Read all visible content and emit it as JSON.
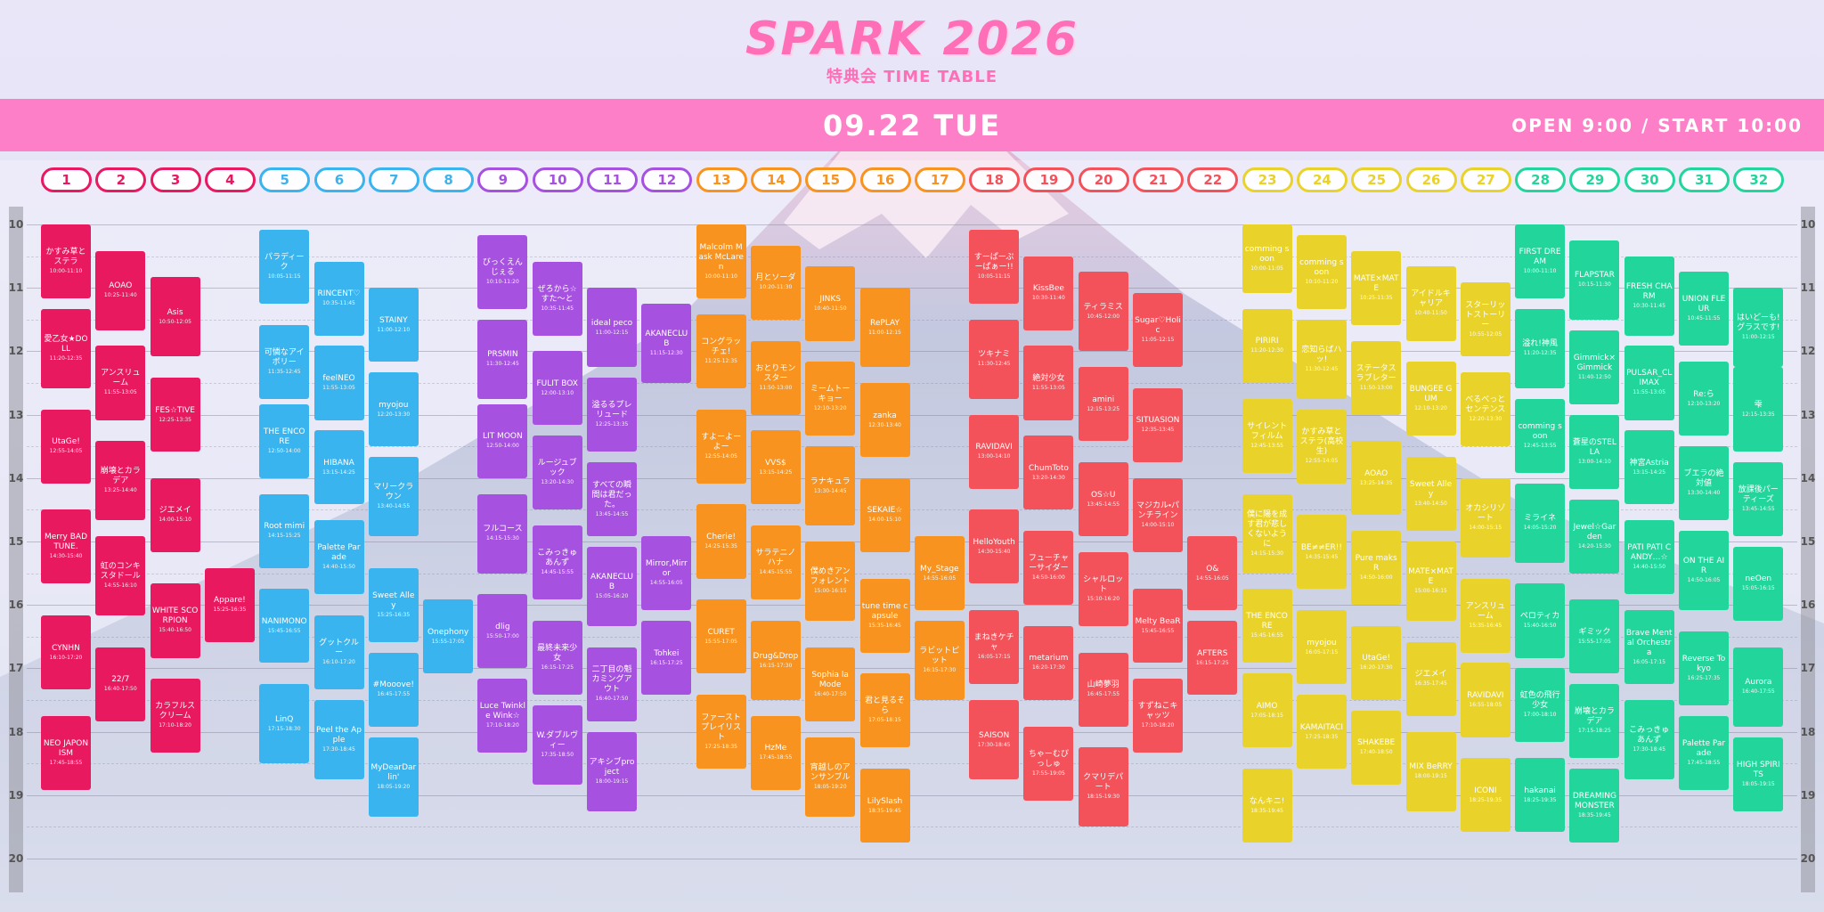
{
  "header": {
    "title": "SPARK 2026",
    "subtitle": "特典会 TIME TABLE",
    "date": "09.22 TUE",
    "open": "OPEN 9:00 / START 10:00"
  },
  "hours": [
    "10",
    "11",
    "12",
    "13",
    "14",
    "15",
    "16",
    "17",
    "18",
    "19",
    "20"
  ],
  "stages": [
    {
      "label": "1",
      "color": "#e8195f",
      "events": [
        {
          "name": "かすみ草とステラ",
          "time": "10:00-11:10"
        },
        {
          "name": "愛乙女★DOLL",
          "time": "11:20-12:35"
        },
        {
          "name": "UtaGe!",
          "time": "12:55-14:05"
        },
        {
          "name": "Merry BAD TUNE.",
          "time": "14:30-15:40"
        },
        {
          "name": "CYNHN",
          "time": "16:10-17:20"
        },
        {
          "name": "NEO JAPONISM",
          "time": "17:45-18:55"
        }
      ]
    },
    {
      "label": "2",
      "color": "#e8195f",
      "events": [
        {
          "name": "AOAO",
          "time": "10:25-11:40"
        },
        {
          "name": "アンスリューム",
          "time": "11:55-13:05"
        },
        {
          "name": "崩壊とカラデア",
          "time": "13:25-14:40"
        },
        {
          "name": "虹のコンキスタドール",
          "time": "14:55-16:10"
        },
        {
          "name": "22/7",
          "time": "16:40-17:50"
        }
      ]
    },
    {
      "label": "3",
      "color": "#e8195f",
      "events": [
        {
          "name": "Asis",
          "time": "10:50-12:05"
        },
        {
          "name": "FES☆TIVE",
          "time": "12:25-13:35"
        },
        {
          "name": "ジエメイ",
          "time": "14:00-15:10"
        },
        {
          "name": "WHITE SCORPION",
          "time": "15:40-16:50"
        },
        {
          "name": "カラフルスクリーム",
          "time": "17:10-18:20"
        }
      ]
    },
    {
      "label": "4",
      "color": "#e8195f",
      "events": [
        {
          "name": "Appare!",
          "time": "15:25-16:35"
        }
      ]
    },
    {
      "label": "5",
      "color": "#3ab4ee",
      "events": [
        {
          "name": "パラディーク",
          "time": "10:05-11:15"
        },
        {
          "name": "可憐なアイボリー",
          "time": "11:35-12:45"
        },
        {
          "name": "THE ENCORE",
          "time": "12:50-14:00"
        },
        {
          "name": "Root mimi",
          "time": "14:15-15:25"
        },
        {
          "name": "NANIMONO",
          "time": "15:45-16:55"
        },
        {
          "name": "LinQ",
          "time": "17:15-18:30"
        }
      ]
    },
    {
      "label": "6",
      "color": "#3ab4ee",
      "events": [
        {
          "name": "RINCENT♡",
          "time": "10:35-11:45"
        },
        {
          "name": "feelNEO",
          "time": "11:55-13:05"
        },
        {
          "name": "HIBANA",
          "time": "13:15-14:25"
        },
        {
          "name": "Palette Parade",
          "time": "14:40-15:50"
        },
        {
          "name": "グットクルー",
          "time": "16:10-17:20"
        },
        {
          "name": "Peel the Apple",
          "time": "17:30-18:45"
        }
      ]
    },
    {
      "label": "7",
      "color": "#3ab4ee",
      "events": [
        {
          "name": "STAINY",
          "time": "11:00-12:10"
        },
        {
          "name": "myojou",
          "time": "12:20-13:30"
        },
        {
          "name": "マリークラウン",
          "time": "13:40-14:55"
        },
        {
          "name": "Sweet Alley",
          "time": "15:25-16:35"
        },
        {
          "name": "#Mooove!",
          "time": "16:45-17:55"
        },
        {
          "name": "MyDearDarlin'",
          "time": "18:05-19:20"
        }
      ]
    },
    {
      "label": "8",
      "color": "#3ab4ee",
      "events": [
        {
          "name": "Onephony",
          "time": "15:55-17:05"
        }
      ]
    },
    {
      "label": "9",
      "color": "#a651e0",
      "events": [
        {
          "name": "びっくえんじぇる",
          "time": "10:10-11:20"
        },
        {
          "name": "PRSMIN",
          "time": "11:30-12:45"
        },
        {
          "name": "LIT MOON",
          "time": "12:50-14:00"
        },
        {
          "name": "フルコース",
          "time": "14:15-15:30"
        },
        {
          "name": "dlig",
          "time": "15:50-17:00"
        },
        {
          "name": "Luce Twinkle Wink☆",
          "time": "17:10-18:20"
        }
      ]
    },
    {
      "label": "10",
      "color": "#a651e0",
      "events": [
        {
          "name": "ぜろから☆すた～と",
          "time": "10:35-11:45"
        },
        {
          "name": "FULIT BOX",
          "time": "12:00-13:10"
        },
        {
          "name": "ルージュブック",
          "time": "13:20-14:30"
        },
        {
          "name": "こみっきゅあんず",
          "time": "14:45-15:55"
        },
        {
          "name": "最終未来少女",
          "time": "16:15-17:25"
        },
        {
          "name": "W.ダブルヴィー",
          "time": "17:35-18:50"
        }
      ]
    },
    {
      "label": "11",
      "color": "#a651e0",
      "events": [
        {
          "name": "ideal peco",
          "time": "11:00-12:15"
        },
        {
          "name": "溢るるプレリュード",
          "time": "12:25-13:35"
        },
        {
          "name": "すべての瞬間は君だった。",
          "time": "13:45-14:55"
        },
        {
          "name": "AKANECLUB",
          "time": "15:05-16:20"
        },
        {
          "name": "二丁目の魁カミングアウト",
          "time": "16:40-17:50"
        },
        {
          "name": "アキシブproject",
          "time": "18:00-19:15"
        }
      ]
    },
    {
      "label": "12",
      "color": "#a651e0",
      "events": [
        {
          "name": "AKANECLUB",
          "time": "11:15-12:30"
        },
        {
          "name": "Mirror,Mirror",
          "time": "14:55-16:05"
        },
        {
          "name": "Tohkei",
          "time": "16:15-17:25"
        }
      ]
    },
    {
      "label": "13",
      "color": "#f7931e",
      "events": [
        {
          "name": "Malcolm Mask McLaren",
          "time": "10:00-11:10"
        },
        {
          "name": "コングラッチェ!",
          "time": "11:25-12:35"
        },
        {
          "name": "すよーよーよー",
          "time": "12:55-14:05"
        },
        {
          "name": "Cherie!",
          "time": "14:25-15:35"
        },
        {
          "name": "CURET",
          "time": "15:55-17:05"
        },
        {
          "name": "ファーストプレイリスト",
          "time": "17:25-18:35"
        }
      ]
    },
    {
      "label": "14",
      "color": "#f7931e",
      "events": [
        {
          "name": "月とソーダ",
          "time": "10:20-11:30"
        },
        {
          "name": "おとりモンスター",
          "time": "11:50-13:00"
        },
        {
          "name": "VVS$",
          "time": "13:15-14:25"
        },
        {
          "name": "サラテニノハナ",
          "time": "14:45-15:55"
        },
        {
          "name": "Drug&Drop",
          "time": "16:15-17:30"
        },
        {
          "name": "HzMe",
          "time": "17:45-18:55"
        }
      ]
    },
    {
      "label": "15",
      "color": "#f7931e",
      "events": [
        {
          "name": "JINKS",
          "time": "10:40-11:50"
        },
        {
          "name": "ミームトーキョー",
          "time": "12:10-13:20"
        },
        {
          "name": "ラナキュラ",
          "time": "13:30-14:45"
        },
        {
          "name": "僕めきアンフォレント",
          "time": "15:00-16:15"
        },
        {
          "name": "Sophia la Mode",
          "time": "16:40-17:50"
        },
        {
          "name": "宵越しのアンサンブル",
          "time": "18:05-19:20"
        }
      ]
    },
    {
      "label": "16",
      "color": "#f7931e",
      "events": [
        {
          "name": "RePLAY",
          "time": "11:00-12:15"
        },
        {
          "name": "zanka",
          "time": "12:30-13:40"
        },
        {
          "name": "SEKAIE☆",
          "time": "14:00-15:10"
        },
        {
          "name": "tune time capsule",
          "time": "15:35-16:45"
        },
        {
          "name": "君と見るそら",
          "time": "17:05-18:15"
        },
        {
          "name": "LilySlash",
          "time": "18:35-19:45"
        }
      ]
    },
    {
      "label": "17",
      "color": "#f7931e",
      "events": [
        {
          "name": "My_Stage",
          "time": "14:55-16:05"
        },
        {
          "name": "ラビットピット",
          "time": "16:15-17:30"
        }
      ]
    },
    {
      "label": "18",
      "color": "#f4525a",
      "events": [
        {
          "name": "すーぱーぷーぱぁー!!",
          "time": "10:05-11:15"
        },
        {
          "name": "ツキナミ",
          "time": "11:30-12:45"
        },
        {
          "name": "RAVIDAVI",
          "time": "13:00-14:10"
        },
        {
          "name": "HelloYouth",
          "time": "14:30-15:40"
        },
        {
          "name": "まねきケチャ",
          "time": "16:05-17:15"
        },
        {
          "name": "SAISON",
          "time": "17:30-18:45"
        }
      ]
    },
    {
      "label": "19",
      "color": "#f4525a",
      "events": [
        {
          "name": "KissBee",
          "time": "10:30-11:40"
        },
        {
          "name": "絶対少女",
          "time": "11:55-13:05"
        },
        {
          "name": "ChumToto",
          "time": "13:20-14:30"
        },
        {
          "name": "フューチャーサイダー",
          "time": "14:50-16:00"
        },
        {
          "name": "metarium",
          "time": "16:20-17:30"
        },
        {
          "name": "ちゃーむぴっしゅ",
          "time": "17:55-19:05"
        }
      ]
    },
    {
      "label": "20",
      "color": "#f4525a",
      "events": [
        {
          "name": "ティラミス",
          "time": "10:45-12:00"
        },
        {
          "name": "amini",
          "time": "12:15-13:25"
        },
        {
          "name": "OS☆U",
          "time": "13:45-14:55"
        },
        {
          "name": "シャルロット",
          "time": "15:10-16:20"
        },
        {
          "name": "山崎夢羽",
          "time": "16:45-17:55"
        },
        {
          "name": "クマリデパート",
          "time": "18:15-19:30"
        }
      ]
    },
    {
      "label": "21",
      "color": "#f4525a",
      "events": [
        {
          "name": "Sugar♡Holic",
          "time": "11:05-12:15"
        },
        {
          "name": "SITUASION",
          "time": "12:35-13:45"
        },
        {
          "name": "マジカル・パンチライン",
          "time": "14:00-15:10"
        },
        {
          "name": "Melty BeaR",
          "time": "15:45-16:55"
        },
        {
          "name": "すずねこキャッツ",
          "time": "17:10-18:20"
        }
      ]
    },
    {
      "label": "22",
      "color": "#f4525a",
      "events": [
        {
          "name": "O&",
          "time": "14:55-16:05"
        },
        {
          "name": "AFTERS",
          "time": "16:15-17:25"
        }
      ]
    },
    {
      "label": "23",
      "color": "#e9d32a",
      "events": [
        {
          "name": "comming soon",
          "time": "10:00-11:05"
        },
        {
          "name": "PIRIRI",
          "time": "11:20-12:30"
        },
        {
          "name": "サイレントフィルム",
          "time": "12:45-13:55"
        },
        {
          "name": "僕に陽を成す君が悲しくないように",
          "time": "14:15-15:30"
        },
        {
          "name": "THE ENCORE",
          "time": "15:45-16:55"
        },
        {
          "name": "AIMO",
          "time": "17:05-18:15"
        },
        {
          "name": "なんキニ!",
          "time": "18:35-19:45"
        }
      ]
    },
    {
      "label": "24",
      "color": "#e9d32a",
      "events": [
        {
          "name": "comming soon",
          "time": "10:10-11:20"
        },
        {
          "name": "恋知らばハッ!",
          "time": "11:30-12:45"
        },
        {
          "name": "かすみ草とステラ(高校生)",
          "time": "12:55-14:05"
        },
        {
          "name": "BE≠≠ER!!",
          "time": "14:35-15:45"
        },
        {
          "name": "myojou",
          "time": "16:05-17:15"
        },
        {
          "name": "KAMAITACI",
          "time": "17:25-18:35"
        }
      ]
    },
    {
      "label": "25",
      "color": "#e9d32a",
      "events": [
        {
          "name": "MATE×MATE",
          "time": "10:25-11:35"
        },
        {
          "name": "ステータスラブレター",
          "time": "11:50-13:00"
        },
        {
          "name": "AOAO",
          "time": "13:25-14:35"
        },
        {
          "name": "Pure maksR",
          "time": "14:50-16:00"
        },
        {
          "name": "UtaGe!",
          "time": "16:20-17:30"
        },
        {
          "name": "SHAKEBE",
          "time": "17:40-18:50"
        }
      ]
    },
    {
      "label": "26",
      "color": "#e9d32a",
      "events": [
        {
          "name": "アイドルキャリア",
          "time": "10:40-11:50"
        },
        {
          "name": "BUNGEE GUM",
          "time": "12:10-13:20"
        },
        {
          "name": "Sweet Alley",
          "time": "13:40-14:50"
        },
        {
          "name": "MATE×MATE",
          "time": "15:00-16:15"
        },
        {
          "name": "ジエメイ",
          "time": "16:35-17:45"
        },
        {
          "name": "MIX BeRRY",
          "time": "18:00-19:15"
        }
      ]
    },
    {
      "label": "27",
      "color": "#e9d32a",
      "events": [
        {
          "name": "スターリットストーリー",
          "time": "10:55-12:05"
        },
        {
          "name": "べるべっとセンテンス",
          "time": "12:20-13:30"
        },
        {
          "name": "オカシリゾート",
          "time": "14:00-15:15"
        },
        {
          "name": "アンスリューム",
          "time": "15:35-16:45"
        },
        {
          "name": "RAVIDAVI",
          "time": "16:55-18:05"
        },
        {
          "name": "ICONI",
          "time": "18:25-19:35"
        }
      ]
    },
    {
      "label": "28",
      "color": "#22d69b",
      "events": [
        {
          "name": "FIRST DREAM",
          "time": "10:00-11:10"
        },
        {
          "name": "溢れ!神風",
          "time": "11:20-12:35"
        },
        {
          "name": "comming soon",
          "time": "12:45-13:55"
        },
        {
          "name": "ミライネ",
          "time": "14:05-15:20"
        },
        {
          "name": "ペロティカ",
          "time": "15:40-16:50"
        },
        {
          "name": "虹色の飛行少女",
          "time": "17:00-18:10"
        },
        {
          "name": "hakanai",
          "time": "18:25-19:35"
        }
      ]
    },
    {
      "label": "29",
      "color": "#22d69b",
      "events": [
        {
          "name": "FLAPSTAR",
          "time": "10:15-11:30"
        },
        {
          "name": "Gimmick×Gimmick",
          "time": "11:40-12:50"
        },
        {
          "name": "蒼星のSTELLA",
          "time": "13:00-14:10"
        },
        {
          "name": "Jewel☆Garden",
          "time": "14:20-15:30"
        },
        {
          "name": "ギミック",
          "time": "15:55-17:05"
        },
        {
          "name": "崩壊とカラデア",
          "time": "17:15-18:25"
        },
        {
          "name": "DREAMING MONSTER",
          "time": "18:35-19:45"
        }
      ]
    },
    {
      "label": "30",
      "color": "#22d69b",
      "events": [
        {
          "name": "FRESH CHARM",
          "time": "10:30-11:45"
        },
        {
          "name": "PULSAR_CLIMAX",
          "time": "11:55-13:05"
        },
        {
          "name": "神宮Astria",
          "time": "13:15-14:25"
        },
        {
          "name": "PATI PATI CANDY…☆",
          "time": "14:40-15:50"
        },
        {
          "name": "Brave Mental Orchestra",
          "time": "16:05-17:15"
        },
        {
          "name": "こみっきゅあんず",
          "time": "17:30-18:45"
        }
      ]
    },
    {
      "label": "31",
      "color": "#22d69b",
      "events": [
        {
          "name": "UNION FLEUR",
          "time": "10:45-11:55"
        },
        {
          "name": "Re:ら",
          "time": "12:10-13:20"
        },
        {
          "name": "ブエラの絶対値",
          "time": "13:30-14:40"
        },
        {
          "name": "ON THE AIR",
          "time": "14:50-16:05"
        },
        {
          "name": "Reverse Tokyo",
          "time": "16:25-17:35"
        },
        {
          "name": "Palette Parade",
          "time": "17:45-18:55"
        }
      ]
    },
    {
      "label": "32",
      "color": "#22d69b",
      "events": [
        {
          "name": "はいどーも!グラスです!",
          "time": "11:00-12:15"
        },
        {
          "name": "雫",
          "time": "12:15-13:35"
        },
        {
          "name": "放課後パーティーズ",
          "time": "13:45-14:55"
        },
        {
          "name": "neOen",
          "time": "15:05-16:15"
        },
        {
          "name": "Aurora",
          "time": "16:40-17:55"
        },
        {
          "name": "HIGH SPIRITS",
          "time": "18:05-19:15"
        }
      ]
    }
  ]
}
